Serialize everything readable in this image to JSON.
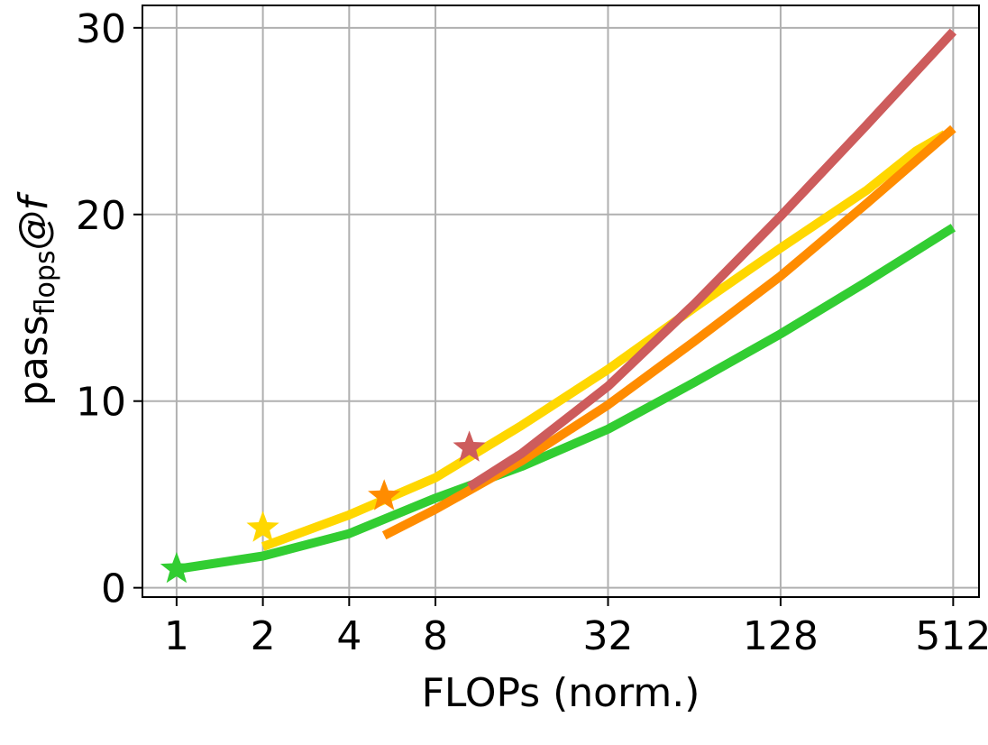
{
  "chart_data": {
    "type": "line",
    "xlabel": "FLOPs (norm.)",
    "ylabel": {
      "main": "pass",
      "subscript": "flops",
      "suffix": "@f"
    },
    "x_scale": "log2",
    "xlim": [
      0.76,
      630
    ],
    "ylim": [
      -0.5,
      31.2
    ],
    "x_ticks": [
      1,
      2,
      4,
      8,
      32,
      128,
      512
    ],
    "x_tick_labels": [
      "1",
      "2",
      "4",
      "8",
      "32",
      "128",
      "512"
    ],
    "y_ticks": [
      0,
      10,
      20,
      30
    ],
    "y_tick_labels": [
      "0",
      "10",
      "20",
      "30"
    ],
    "grid": true,
    "legend": "none",
    "series": [
      {
        "color": "#32cd32",
        "points": [
          [
            1,
            1.0
          ],
          [
            2,
            1.7
          ],
          [
            4,
            2.9
          ],
          [
            8,
            4.8
          ],
          [
            16,
            6.5
          ],
          [
            32,
            8.5
          ],
          [
            64,
            11.0
          ],
          [
            128,
            13.6
          ],
          [
            256,
            16.4
          ],
          [
            512,
            19.3
          ]
        ],
        "star": [
          1,
          1.0
        ]
      },
      {
        "color": "#ffd700",
        "points": [
          [
            2,
            2.2
          ],
          [
            4,
            3.9
          ],
          [
            8,
            5.9
          ],
          [
            16,
            8.7
          ],
          [
            32,
            11.7
          ],
          [
            64,
            15.0
          ],
          [
            128,
            18.2
          ],
          [
            256,
            21.3
          ],
          [
            380,
            23.4
          ],
          [
            480,
            24.3
          ]
        ],
        "star": [
          2,
          3.2
        ]
      },
      {
        "color": "#ff8c00",
        "points": [
          [
            5.3,
            2.8
          ],
          [
            8,
            4.2
          ],
          [
            16,
            6.8
          ],
          [
            32,
            9.8
          ],
          [
            64,
            13.2
          ],
          [
            128,
            16.7
          ],
          [
            256,
            20.6
          ],
          [
            512,
            24.6
          ]
        ],
        "star": [
          5.3,
          4.9
        ]
      },
      {
        "color": "#cd5c5c",
        "points": [
          [
            10.5,
            5.4
          ],
          [
            16,
            7.2
          ],
          [
            32,
            10.8
          ],
          [
            64,
            15.2
          ],
          [
            128,
            19.9
          ],
          [
            256,
            24.8
          ],
          [
            512,
            29.8
          ]
        ],
        "star": [
          10.5,
          7.5
        ]
      }
    ]
  }
}
